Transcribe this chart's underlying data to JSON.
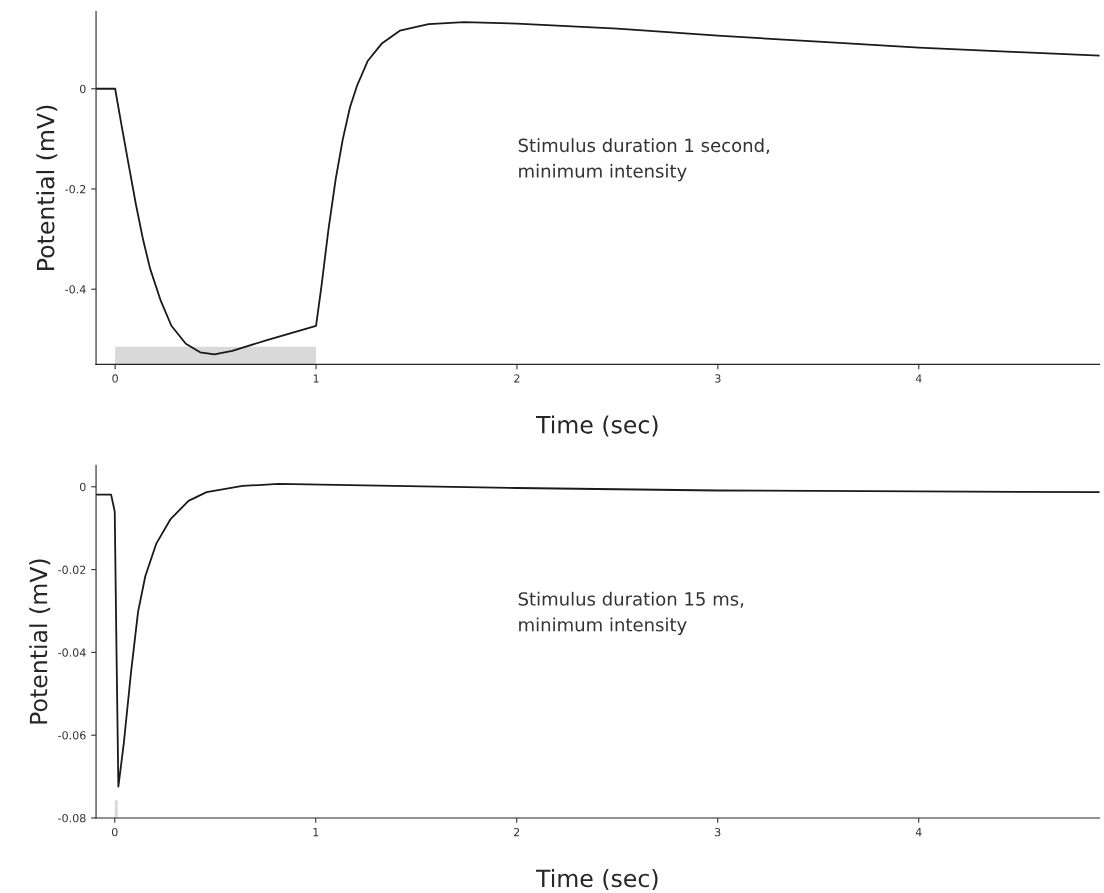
{
  "chart_data": [
    {
      "type": "line",
      "xlabel": "Time (sec)",
      "ylabel": "Potential (mV)",
      "xlim": [
        -0.095,
        4.9
      ],
      "xticks": [
        0,
        1,
        2,
        3,
        4
      ],
      "ylim": [
        -0.55,
        0.154
      ],
      "yticks": [
        {
          "value": 0,
          "label": "0"
        },
        {
          "value": -0.2,
          "label": "-0.2"
        },
        {
          "value": -0.4,
          "label": "-0.4"
        }
      ],
      "series": [
        {
          "color": "#1a1a1a",
          "x": [
            -0.095,
            0.0,
            0.032,
            0.067,
            0.103,
            0.139,
            0.174,
            0.227,
            0.28,
            0.352,
            0.423,
            0.494,
            0.583,
            0.76,
            1.0,
            1.027,
            1.062,
            1.098,
            1.133,
            1.169,
            1.204,
            1.258,
            1.329,
            1.417,
            1.56,
            1.737,
            2.0,
            2.5,
            3.0,
            3.5,
            4.0,
            4.5,
            4.9
          ],
          "values": [
            0,
            0,
            -0.073,
            -0.151,
            -0.23,
            -0.301,
            -0.359,
            -0.423,
            -0.473,
            -0.509,
            -0.526,
            -0.53,
            -0.523,
            -0.501,
            -0.473,
            -0.394,
            -0.28,
            -0.18,
            -0.101,
            -0.037,
            0.006,
            0.056,
            0.091,
            0.116,
            0.129,
            0.133,
            0.13,
            0.12,
            0.106,
            0.094,
            0.082,
            0.073,
            0.066
          ]
        }
      ],
      "bands": [
        {
          "axis": "x",
          "from": 0,
          "to": 1,
          "color": "#d9d9d9"
        }
      ],
      "annotations": [
        "Stimulus duration 1 second,\nminimum intensity"
      ]
    },
    {
      "type": "line",
      "xlabel": "Time (sec)",
      "ylabel": "Potential (mV)",
      "xlim": [
        -0.093,
        4.9
      ],
      "xticks": [
        0,
        1,
        2,
        3,
        4
      ],
      "ylim": [
        -0.08,
        0.0052
      ],
      "yticks": [
        {
          "value": 0,
          "label": "0"
        },
        {
          "value": -0.02,
          "label": "-0.02"
        },
        {
          "value": -0.04,
          "label": "-0.04"
        },
        {
          "value": -0.06,
          "label": "-0.06"
        },
        {
          "value": -0.08,
          "label": "-0.08"
        }
      ],
      "series": [
        {
          "color": "#1a1a1a",
          "x": [
            -0.093,
            -0.018,
            0.0,
            0.009,
            0.018,
            0.045,
            0.081,
            0.116,
            0.152,
            0.206,
            0.278,
            0.367,
            0.457,
            0.636,
            0.815,
            1.17,
            2.0,
            3.0,
            4.0,
            4.9
          ],
          "values": [
            -0.0019,
            -0.0019,
            -0.006,
            -0.0405,
            -0.0724,
            -0.062,
            -0.0448,
            -0.0302,
            -0.0216,
            -0.0138,
            -0.0078,
            -0.0034,
            -0.0013,
            0.0002,
            0.0007,
            0.0004,
            -0.0003,
            -0.0009,
            -0.0011,
            -0.0013
          ]
        }
      ],
      "bands": [
        {
          "axis": "x",
          "from": 0,
          "to": 0.015,
          "color": "#d9d9d9"
        }
      ],
      "annotations": [
        "Stimulus duration 15 ms,\nminimum intensity"
      ]
    }
  ]
}
